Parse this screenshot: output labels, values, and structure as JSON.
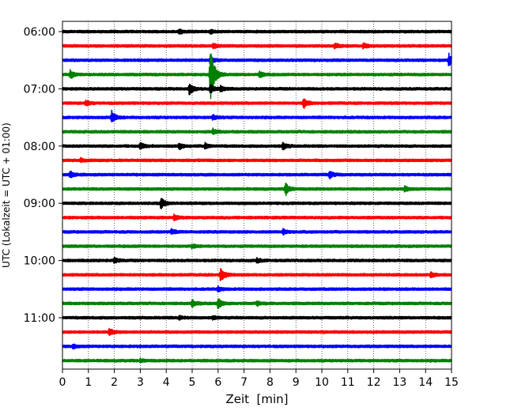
{
  "chart_data": {
    "type": "line",
    "title": "",
    "xlabel": "Zeit  [min]",
    "ylabel": "UTC (Lokalzeit = UTC + 01:00)",
    "xlim": [
      0,
      15
    ],
    "x_ticks": [
      0,
      1,
      2,
      3,
      4,
      5,
      6,
      7,
      8,
      9,
      10,
      11,
      12,
      13,
      14,
      15
    ],
    "x_tick_labels": [
      "0",
      "1",
      "2",
      "3",
      "4",
      "5",
      "6",
      "7",
      "8",
      "9",
      "10",
      "11",
      "12",
      "13",
      "14",
      "15"
    ],
    "grid": "vertical dotted lines at each minute",
    "trace_interval_min": 15,
    "colors": [
      "#000000",
      "#ff0000",
      "#0000ff",
      "#008000"
    ],
    "y_ticks": [
      {
        "label": "06:00",
        "trace": 0
      },
      {
        "label": "07:00",
        "trace": 4
      },
      {
        "label": "08:00",
        "trace": 8
      },
      {
        "label": "09:00",
        "trace": 12
      },
      {
        "label": "10:00",
        "trace": 16
      },
      {
        "label": "11:00",
        "trace": 20
      }
    ],
    "series": [
      {
        "start": "06:00",
        "color": "#000000",
        "events": [
          {
            "t": 4.5,
            "amp": 0.25
          },
          {
            "t": 5.7,
            "amp": 0.2
          }
        ]
      },
      {
        "start": "06:15",
        "color": "#ff0000",
        "events": [
          {
            "t": 5.8,
            "amp": 0.3
          },
          {
            "t": 10.5,
            "amp": 0.35
          },
          {
            "t": 11.6,
            "amp": 0.3
          }
        ]
      },
      {
        "start": "06:30",
        "color": "#0000ff",
        "events": [
          {
            "t": 5.7,
            "amp": 0.5
          },
          {
            "t": 14.9,
            "amp": 0.8
          }
        ]
      },
      {
        "start": "06:45",
        "color": "#008000",
        "events": [
          {
            "t": 0.3,
            "amp": 0.5
          },
          {
            "t": 5.7,
            "amp": 4.0
          },
          {
            "t": 7.6,
            "amp": 0.35
          }
        ]
      },
      {
        "start": "07:00",
        "color": "#000000",
        "events": [
          {
            "t": 4.9,
            "amp": 0.8
          },
          {
            "t": 5.7,
            "amp": 0.5
          },
          {
            "t": 6.1,
            "amp": 0.3
          }
        ]
      },
      {
        "start": "07:15",
        "color": "#ff0000",
        "events": [
          {
            "t": 0.9,
            "amp": 0.3
          },
          {
            "t": 9.3,
            "amp": 0.6
          }
        ]
      },
      {
        "start": "07:30",
        "color": "#0000ff",
        "events": [
          {
            "t": 1.9,
            "amp": 0.8
          },
          {
            "t": 5.8,
            "amp": 0.3
          }
        ]
      },
      {
        "start": "07:45",
        "color": "#008000",
        "events": [
          {
            "t": 5.8,
            "amp": 0.3
          }
        ]
      },
      {
        "start": "08:00",
        "color": "#000000",
        "events": [
          {
            "t": 3.0,
            "amp": 0.35
          },
          {
            "t": 4.5,
            "amp": 0.35
          },
          {
            "t": 5.5,
            "amp": 0.3
          },
          {
            "t": 8.5,
            "amp": 0.4
          }
        ]
      },
      {
        "start": "08:15",
        "color": "#ff0000",
        "events": [
          {
            "t": 0.7,
            "amp": 0.2
          }
        ]
      },
      {
        "start": "08:30",
        "color": "#0000ff",
        "events": [
          {
            "t": 0.3,
            "amp": 0.35
          },
          {
            "t": 10.3,
            "amp": 0.45
          }
        ]
      },
      {
        "start": "08:45",
        "color": "#008000",
        "events": [
          {
            "t": 8.6,
            "amp": 0.8
          },
          {
            "t": 13.2,
            "amp": 0.3
          }
        ]
      },
      {
        "start": "09:00",
        "color": "#000000",
        "events": [
          {
            "t": 3.8,
            "amp": 0.7
          }
        ]
      },
      {
        "start": "09:15",
        "color": "#ff0000",
        "events": [
          {
            "t": 4.3,
            "amp": 0.3
          }
        ]
      },
      {
        "start": "09:30",
        "color": "#0000ff",
        "events": [
          {
            "t": 4.2,
            "amp": 0.3
          },
          {
            "t": 8.5,
            "amp": 0.3
          }
        ]
      },
      {
        "start": "09:45",
        "color": "#008000",
        "events": [
          {
            "t": 5.0,
            "amp": 0.2
          }
        ]
      },
      {
        "start": "10:00",
        "color": "#000000",
        "events": [
          {
            "t": 2.0,
            "amp": 0.3
          },
          {
            "t": 7.5,
            "amp": 0.25
          }
        ]
      },
      {
        "start": "10:15",
        "color": "#ff0000",
        "events": [
          {
            "t": 6.1,
            "amp": 0.9
          },
          {
            "t": 14.2,
            "amp": 0.3
          }
        ]
      },
      {
        "start": "10:30",
        "color": "#0000ff",
        "events": [
          {
            "t": 6.0,
            "amp": 0.25
          }
        ]
      },
      {
        "start": "10:45",
        "color": "#008000",
        "events": [
          {
            "t": 5.0,
            "amp": 0.4
          },
          {
            "t": 6.0,
            "amp": 0.6
          },
          {
            "t": 7.5,
            "amp": 0.25
          }
        ]
      },
      {
        "start": "11:00",
        "color": "#000000",
        "events": [
          {
            "t": 4.5,
            "amp": 0.25
          },
          {
            "t": 5.8,
            "amp": 0.2
          }
        ]
      },
      {
        "start": "11:15",
        "color": "#ff0000",
        "events": [
          {
            "t": 1.8,
            "amp": 0.45
          }
        ]
      },
      {
        "start": "11:30",
        "color": "#0000ff",
        "events": [
          {
            "t": 0.4,
            "amp": 0.25
          }
        ]
      },
      {
        "start": "11:45",
        "color": "#008000",
        "events": [
          {
            "t": 3.0,
            "amp": 0.2
          }
        ]
      }
    ]
  }
}
